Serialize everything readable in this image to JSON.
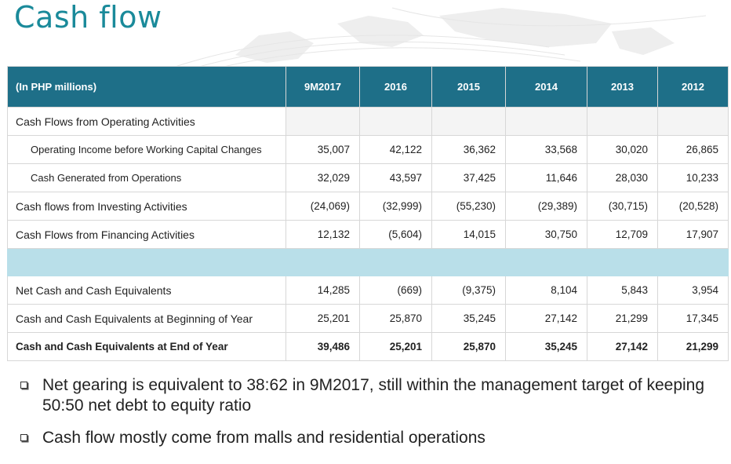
{
  "title": "Cash flow",
  "table": {
    "header": {
      "label": "(In PHP millions)",
      "years": [
        "9M2017",
        "2016",
        "2015",
        "2014",
        "2013",
        "2012"
      ]
    },
    "section_label": "Cash Flows from Operating Activities",
    "rows_top": [
      {
        "label": "Operating Income before Working Capital Changes",
        "values": [
          "35,007",
          "42,122",
          "36,362",
          "33,568",
          "30,020",
          "26,865"
        ]
      },
      {
        "label": "Cash Generated from Operations",
        "values": [
          "32,029",
          "43,597",
          "37,425",
          "11,646",
          "28,030",
          "10,233"
        ]
      },
      {
        "label": "Cash flows from Investing Activities",
        "values": [
          "(24,069)",
          "(32,999)",
          "(55,230)",
          "(29,389)",
          "(30,715)",
          "(20,528)"
        ]
      },
      {
        "label": "Cash Flows from Financing Activities",
        "values": [
          "12,132",
          "(5,604)",
          "14,015",
          "30,750",
          "12,709",
          "17,907"
        ]
      }
    ],
    "rows_bottom": [
      {
        "label": "Net Cash and Cash Equivalents",
        "values": [
          "14,285",
          "(669)",
          "(9,375)",
          "8,104",
          "5,843",
          "3,954"
        ]
      },
      {
        "label": "Cash and Cash Equivalents at Beginning of Year",
        "values": [
          "25,201",
          "25,870",
          "35,245",
          "27,142",
          "21,299",
          "17,345"
        ]
      },
      {
        "label": "Cash and Cash Equivalents at End of Year",
        "values": [
          "39,486",
          "25,201",
          "25,870",
          "35,245",
          "27,142",
          "21,299"
        ]
      }
    ]
  },
  "bullets": [
    "Net gearing is equivalent to 38:62 in 9M2017, still within the management target of keeping 50:50 net debt to equity ratio",
    "Cash flow mostly come from malls and residential operations"
  ],
  "colors": {
    "title": "#1a8a9a",
    "header_bg": "#1e6f88",
    "band": "#b9dfe9"
  },
  "icons": {
    "bullet": "hollow-square-bullet-icon",
    "background": "world-map-watermark"
  }
}
